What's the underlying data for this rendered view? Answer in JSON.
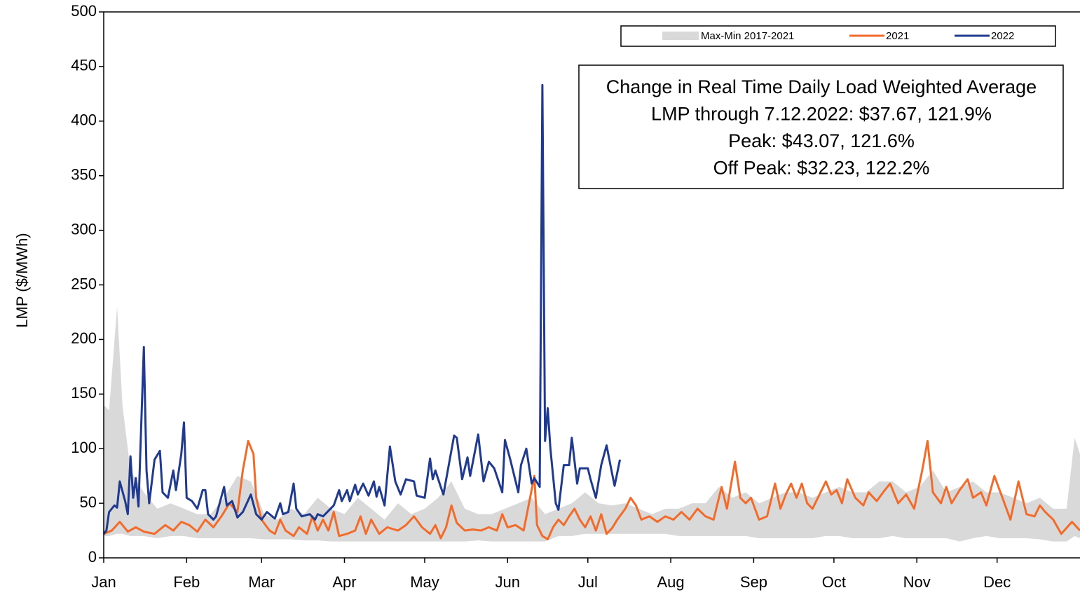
{
  "chart_data": {
    "type": "line",
    "ylabel": "LMP ($/MWh)",
    "xlim": [
      0,
      365
    ],
    "xticks": [
      {
        "value": 0,
        "label": "Jan"
      },
      {
        "value": 31,
        "label": "Feb"
      },
      {
        "value": 59,
        "label": "Mar"
      },
      {
        "value": 90,
        "label": "Apr"
      },
      {
        "value": 120,
        "label": "May"
      },
      {
        "value": 151,
        "label": "Jun"
      },
      {
        "value": 181,
        "label": "Jul"
      },
      {
        "value": 212,
        "label": "Aug"
      },
      {
        "value": 243,
        "label": "Sep"
      },
      {
        "value": 273,
        "label": "Oct"
      },
      {
        "value": 304,
        "label": "Nov"
      },
      {
        "value": 334,
        "label": "Dec"
      }
    ],
    "ylim": [
      0,
      500
    ],
    "yticks": [
      0,
      50,
      100,
      150,
      200,
      250,
      300,
      350,
      400,
      450,
      500
    ],
    "legend": "top-right",
    "annotation": [
      "Change in Real Time Daily Load Weighted Average",
      "LMP through 7.12.2022: $37.67, 121.9%",
      "Peak: $43.07, 121.6%",
      "Off Peak: $32.23, 122.2%"
    ],
    "band": {
      "name": "Max-Min 2017-2021",
      "color": "#d9d9d9",
      "x": [
        0,
        2,
        5,
        7,
        10,
        15,
        20,
        25,
        30,
        35,
        40,
        45,
        50,
        55,
        60,
        65,
        70,
        75,
        80,
        85,
        90,
        95,
        100,
        105,
        110,
        115,
        120,
        125,
        130,
        135,
        140,
        145,
        150,
        155,
        160,
        165,
        170,
        175,
        180,
        185,
        190,
        195,
        200,
        205,
        210,
        215,
        220,
        225,
        230,
        235,
        240,
        245,
        250,
        255,
        260,
        265,
        270,
        275,
        280,
        285,
        290,
        295,
        300,
        305,
        310,
        315,
        320,
        325,
        330,
        335,
        340,
        345,
        350,
        355,
        360,
        363,
        365
      ],
      "high": [
        140,
        135,
        230,
        140,
        80,
        60,
        45,
        50,
        45,
        40,
        40,
        55,
        75,
        70,
        40,
        35,
        45,
        40,
        55,
        45,
        40,
        55,
        45,
        35,
        50,
        40,
        45,
        55,
        70,
        45,
        40,
        40,
        45,
        50,
        55,
        40,
        45,
        50,
        60,
        50,
        48,
        50,
        45,
        40,
        45,
        45,
        50,
        50,
        65,
        55,
        60,
        50,
        55,
        60,
        60,
        55,
        60,
        65,
        60,
        60,
        70,
        70,
        60,
        65,
        80,
        60,
        65,
        70,
        60,
        60,
        55,
        50,
        55,
        45,
        45,
        110,
        95
      ],
      "low": [
        20,
        20,
        22,
        22,
        20,
        20,
        18,
        20,
        20,
        18,
        18,
        18,
        18,
        18,
        17,
        17,
        17,
        16,
        16,
        15,
        15,
        15,
        15,
        15,
        15,
        15,
        15,
        15,
        15,
        15,
        16,
        15,
        15,
        15,
        15,
        15,
        20,
        20,
        22,
        22,
        22,
        22,
        22,
        22,
        22,
        20,
        20,
        20,
        20,
        20,
        20,
        18,
        18,
        18,
        18,
        18,
        20,
        20,
        18,
        18,
        18,
        20,
        18,
        18,
        18,
        18,
        15,
        18,
        20,
        18,
        18,
        18,
        17,
        15,
        15,
        20,
        18
      ]
    },
    "series": [
      {
        "name": "2021",
        "color": "#f26b2b",
        "x": [
          0,
          3,
          6,
          9,
          12,
          15,
          19,
          23,
          26,
          29,
          32,
          35,
          38,
          41,
          44,
          47,
          50,
          52,
          54,
          56,
          57,
          59,
          62,
          64,
          66,
          68,
          71,
          73,
          76,
          78,
          80,
          82,
          84,
          86,
          88,
          91,
          94,
          96,
          98,
          100,
          103,
          106,
          110,
          113,
          116,
          119,
          122,
          124,
          126,
          128,
          130,
          132,
          135,
          138,
          141,
          144,
          147,
          149,
          151,
          154,
          157,
          159,
          161,
          162,
          164,
          166,
          168,
          170,
          172,
          174,
          176,
          178,
          180,
          182,
          184,
          186,
          188,
          190,
          192,
          195,
          197,
          199,
          201,
          204,
          207,
          210,
          213,
          216,
          219,
          222,
          225,
          228,
          231,
          233,
          236,
          238,
          240,
          242,
          245,
          248,
          251,
          253,
          255,
          257,
          259,
          261,
          263,
          265,
          267,
          270,
          272,
          274,
          276,
          278,
          281,
          284,
          286,
          289,
          292,
          294,
          297,
          300,
          303,
          306,
          308,
          310,
          313,
          315,
          317,
          320,
          323,
          325,
          328,
          330,
          333,
          336,
          339,
          342,
          345,
          348,
          350,
          352,
          355,
          358,
          362,
          365
        ],
        "values": [
          22,
          25,
          33,
          24,
          28,
          24,
          22,
          30,
          25,
          33,
          30,
          24,
          35,
          28,
          38,
          50,
          42,
          80,
          107,
          95,
          55,
          35,
          25,
          22,
          35,
          25,
          20,
          28,
          22,
          38,
          25,
          35,
          25,
          42,
          20,
          22,
          25,
          38,
          22,
          35,
          22,
          28,
          25,
          30,
          38,
          28,
          22,
          30,
          18,
          28,
          48,
          32,
          25,
          26,
          25,
          28,
          25,
          40,
          28,
          30,
          25,
          50,
          75,
          30,
          20,
          17,
          28,
          35,
          30,
          38,
          45,
          35,
          28,
          38,
          25,
          40,
          22,
          27,
          35,
          45,
          55,
          48,
          35,
          38,
          33,
          38,
          35,
          42,
          35,
          45,
          38,
          35,
          65,
          45,
          88,
          55,
          50,
          55,
          35,
          38,
          68,
          45,
          58,
          68,
          55,
          68,
          50,
          45,
          55,
          70,
          58,
          62,
          50,
          72,
          55,
          48,
          60,
          52,
          62,
          68,
          50,
          58,
          45,
          80,
          107,
          60,
          50,
          65,
          50,
          62,
          72,
          55,
          60,
          48,
          75,
          55,
          35,
          70,
          40,
          38,
          48,
          42,
          35,
          22,
          33,
          25
        ]
      },
      {
        "name": "2022",
        "color": "#1f3a8f",
        "x": [
          0,
          1,
          2,
          4,
          5,
          6,
          8,
          9,
          10,
          11,
          12,
          13,
          15,
          16,
          17,
          19,
          21,
          22,
          24,
          26,
          27,
          29,
          30,
          31,
          33,
          35,
          37,
          38,
          39,
          41,
          42,
          45,
          46,
          48,
          50,
          52,
          55,
          57,
          59,
          61,
          64,
          66,
          67,
          69,
          71,
          72,
          74,
          77,
          79,
          80,
          82,
          86,
          88,
          89,
          91,
          92,
          94,
          95,
          97,
          99,
          101,
          102,
          103,
          105,
          107,
          109,
          111,
          113,
          116,
          117,
          120,
          122,
          123,
          124,
          126,
          127,
          131,
          132,
          134,
          136,
          137,
          140,
          142,
          144,
          146,
          149,
          150,
          152,
          155,
          156,
          158,
          160,
          161,
          163,
          164,
          165,
          166,
          167,
          169,
          170,
          172,
          174,
          175,
          177,
          178,
          181,
          182,
          184,
          186,
          188,
          190,
          191,
          193
        ],
        "values": [
          22,
          25,
          42,
          48,
          46,
          70,
          52,
          40,
          93,
          55,
          73,
          47,
          193,
          80,
          50,
          90,
          98,
          60,
          55,
          80,
          62,
          95,
          124,
          55,
          52,
          45,
          62,
          62,
          40,
          35,
          38,
          65,
          48,
          52,
          37,
          42,
          58,
          40,
          35,
          42,
          36,
          50,
          40,
          42,
          68,
          45,
          38,
          40,
          35,
          40,
          38,
          48,
          62,
          52,
          62,
          52,
          67,
          58,
          68,
          57,
          70,
          56,
          65,
          48,
          102,
          70,
          58,
          72,
          70,
          57,
          55,
          91,
          72,
          80,
          65,
          58,
          112,
          110,
          72,
          92,
          75,
          113,
          70,
          88,
          82,
          60,
          108,
          90,
          60,
          85,
          100,
          68,
          73,
          65,
          433,
          107,
          137,
          100,
          50,
          44,
          85,
          85,
          110,
          68,
          82,
          82,
          72,
          55,
          85,
          103,
          78,
          66,
          90
        ]
      }
    ]
  }
}
